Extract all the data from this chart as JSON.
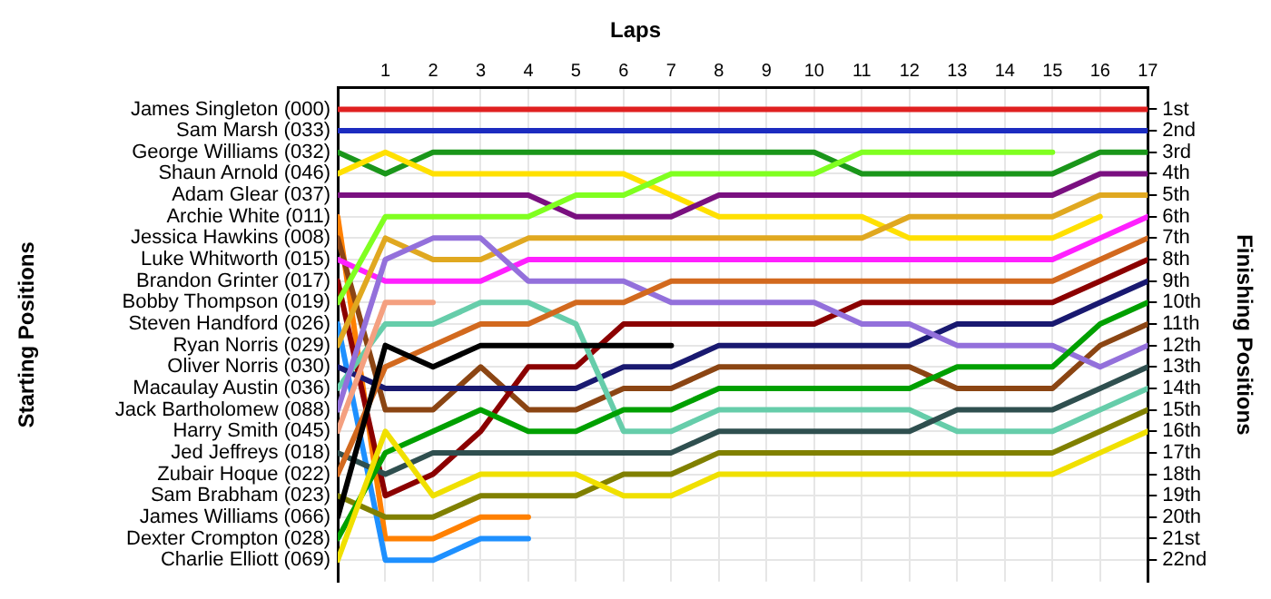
{
  "chart_data": {
    "type": "line",
    "title": "Laps",
    "ylabel": "Finishing Positions",
    "annotations": [
      "Starting Positions"
    ],
    "x": [
      0,
      1,
      2,
      3,
      4,
      5,
      6,
      7,
      8,
      9,
      10,
      11,
      12,
      13,
      14,
      15,
      16,
      17
    ],
    "xlim": [
      0,
      17
    ],
    "xticks": [
      1,
      2,
      3,
      4,
      5,
      6,
      7,
      8,
      9,
      10,
      11,
      12,
      13,
      14,
      15,
      16,
      17
    ],
    "ylim": [
      23,
      0
    ],
    "yticks": [
      {
        "value": 1,
        "label": "1st"
      },
      {
        "value": 2,
        "label": "2nd"
      },
      {
        "value": 3,
        "label": "3rd"
      },
      {
        "value": 4,
        "label": "4th"
      },
      {
        "value": 5,
        "label": "5th"
      },
      {
        "value": 6,
        "label": "6th"
      },
      {
        "value": 7,
        "label": "7th"
      },
      {
        "value": 8,
        "label": "8th"
      },
      {
        "value": 9,
        "label": "9th"
      },
      {
        "value": 10,
        "label": "10th"
      },
      {
        "value": 11,
        "label": "11th"
      },
      {
        "value": 12,
        "label": "12th"
      },
      {
        "value": 13,
        "label": "13th"
      },
      {
        "value": 14,
        "label": "14th"
      },
      {
        "value": 15,
        "label": "15th"
      },
      {
        "value": 16,
        "label": "16th"
      },
      {
        "value": 17,
        "label": "17th"
      },
      {
        "value": 18,
        "label": "18th"
      },
      {
        "value": 19,
        "label": "19th"
      },
      {
        "value": 20,
        "label": "20th"
      },
      {
        "value": 21,
        "label": "21st"
      },
      {
        "value": 22,
        "label": "22nd"
      }
    ],
    "grid": true,
    "legend": false,
    "series": [
      {
        "name": "James Singleton (000)",
        "color": "#e02020",
        "values": [
          1,
          1,
          1,
          1,
          1,
          1,
          1,
          1,
          1,
          1,
          1,
          1,
          1,
          1,
          1,
          1,
          1,
          1
        ]
      },
      {
        "name": "Sam Marsh (033)",
        "color": "#1c2cc0",
        "values": [
          2,
          2,
          2,
          2,
          2,
          2,
          2,
          2,
          2,
          2,
          2,
          2,
          2,
          2,
          2,
          2,
          2,
          2
        ]
      },
      {
        "name": "George Williams (032)",
        "color": "#1a961a",
        "values": [
          3,
          4,
          3,
          3,
          3,
          3,
          3,
          3,
          3,
          3,
          3,
          4,
          4,
          4,
          4,
          4,
          3,
          3
        ]
      },
      {
        "name": "Shaun Arnold (046)",
        "color": "#ffe000",
        "values": [
          4,
          3,
          4,
          4,
          4,
          4,
          4,
          5,
          6,
          6,
          6,
          6,
          7,
          7,
          7,
          7,
          6,
          null
        ]
      },
      {
        "name": "Adam Glear (037)",
        "color": "#7a1080",
        "values": [
          5,
          5,
          5,
          5,
          5,
          6,
          6,
          6,
          5,
          5,
          5,
          5,
          5,
          5,
          5,
          5,
          4,
          4
        ]
      },
      {
        "name": "Archie White (011)",
        "color": "#ff8000",
        "values": [
          6,
          21,
          21,
          20,
          20,
          null,
          null,
          null,
          null,
          null,
          null,
          null,
          null,
          null,
          null,
          null,
          null,
          null
        ]
      },
      {
        "name": "Jessica Hawkins (008)",
        "color": "#8b4513",
        "values": [
          7,
          15,
          15,
          13,
          15,
          15,
          14,
          14,
          13,
          13,
          13,
          13,
          13,
          14,
          14,
          14,
          12,
          11
        ]
      },
      {
        "name": "Luke Whitworth (015)",
        "color": "#ff20ff",
        "values": [
          8,
          9,
          9,
          9,
          8,
          8,
          8,
          8,
          8,
          8,
          8,
          8,
          8,
          8,
          8,
          8,
          7,
          6
        ]
      },
      {
        "name": "Brandon Grinter (017)",
        "color": "#8b0000",
        "values": [
          9,
          19,
          18,
          16,
          13,
          13,
          11,
          11,
          11,
          11,
          11,
          10,
          10,
          10,
          10,
          10,
          9,
          8
        ]
      },
      {
        "name": "Bobby Thompson (019)",
        "color": "#80ff20",
        "values": [
          10,
          6,
          6,
          6,
          6,
          5,
          5,
          4,
          4,
          4,
          4,
          3,
          3,
          3,
          3,
          3,
          null,
          null
        ]
      },
      {
        "name": "Steven Handford (026)",
        "color": "#1e90ff",
        "values": [
          11,
          22,
          22,
          21,
          21,
          null,
          null,
          null,
          null,
          null,
          null,
          null,
          null,
          null,
          null,
          null,
          null,
          null
        ]
      },
      {
        "name": "Ryan Norris (029)",
        "color": "#e0a820",
        "values": [
          12,
          7,
          8,
          8,
          7,
          7,
          7,
          7,
          7,
          7,
          7,
          7,
          6,
          6,
          6,
          6,
          5,
          5
        ]
      },
      {
        "name": "Oliver Norris (030)",
        "color": "#191970",
        "values": [
          13,
          14,
          14,
          14,
          14,
          14,
          13,
          13,
          12,
          12,
          12,
          12,
          12,
          11,
          11,
          11,
          10,
          9
        ]
      },
      {
        "name": "Macaulay Austin (036)",
        "color": "#66cdaa",
        "values": [
          14,
          11,
          11,
          10,
          10,
          11,
          16,
          16,
          15,
          15,
          15,
          15,
          15,
          16,
          16,
          16,
          15,
          14
        ]
      },
      {
        "name": "Jack Bartholomew (088)",
        "color": "#9370db",
        "values": [
          15,
          8,
          7,
          7,
          9,
          9,
          9,
          10,
          10,
          10,
          10,
          11,
          11,
          12,
          12,
          12,
          13,
          12
        ]
      },
      {
        "name": "Harry Smith (045)",
        "color": "#f4a080",
        "values": [
          16,
          10,
          10,
          null,
          null,
          null,
          null,
          null,
          null,
          null,
          null,
          null,
          null,
          null,
          null,
          null,
          null,
          null
        ]
      },
      {
        "name": "Jed Jeffreys (018)",
        "color": "#2f4f4f",
        "values": [
          17,
          18,
          17,
          17,
          17,
          17,
          17,
          17,
          16,
          16,
          16,
          16,
          16,
          15,
          15,
          15,
          14,
          13
        ]
      },
      {
        "name": "Zubair Hoque (022)",
        "color": "#d2691e",
        "values": [
          18,
          13,
          12,
          11,
          11,
          10,
          10,
          9,
          9,
          9,
          9,
          9,
          9,
          9,
          9,
          9,
          8,
          7
        ]
      },
      {
        "name": "Sam Brabham (023)",
        "color": "#808000",
        "values": [
          19,
          20,
          20,
          19,
          19,
          19,
          18,
          18,
          17,
          17,
          17,
          17,
          17,
          17,
          17,
          17,
          16,
          15
        ]
      },
      {
        "name": "James Williams (066)",
        "color": "#000000",
        "values": [
          20,
          12,
          13,
          12,
          12,
          12,
          12,
          12,
          null,
          null,
          null,
          null,
          null,
          null,
          null,
          null,
          null,
          null
        ]
      },
      {
        "name": "Dexter Crompton (028)",
        "color": "#00a000",
        "values": [
          21,
          17,
          16,
          15,
          16,
          16,
          15,
          15,
          14,
          14,
          14,
          14,
          14,
          13,
          13,
          13,
          11,
          10
        ]
      },
      {
        "name": "Charlie Elliott (069)",
        "color": "#f0e000",
        "values": [
          22,
          16,
          19,
          18,
          18,
          18,
          19,
          19,
          18,
          18,
          18,
          18,
          18,
          18,
          18,
          18,
          17,
          16
        ]
      }
    ]
  }
}
